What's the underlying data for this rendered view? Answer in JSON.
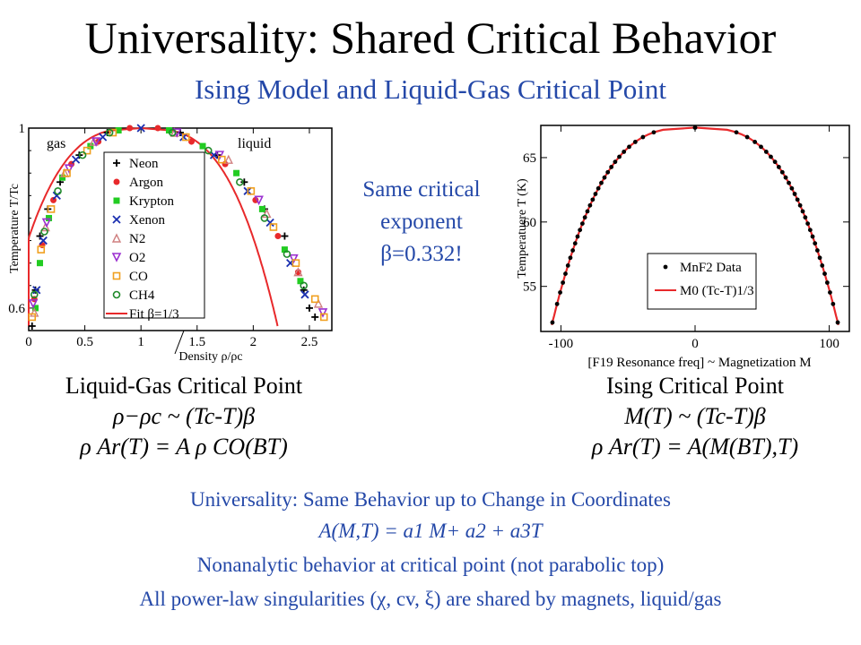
{
  "header": {
    "title": "Universality: Shared Critical Behavior",
    "subtitle": "Ising Model and Liquid-Gas Critical Point"
  },
  "note": {
    "line1": "Same critical",
    "line2": "exponent",
    "line3": "β=0.332!"
  },
  "captions": {
    "left_title": "Liquid-Gas Critical Point",
    "left_formula_1": "ρ−ρc ~ (Tc-T)β",
    "left_formula_2": "ρ Ar(T) = A ρ CO(BT)",
    "right_title": "Ising Critical Point",
    "right_formula_1": "M(T) ~ (Tc-T)β",
    "right_formula_2": "ρ Ar(T) = A(M(BT),T)"
  },
  "bottom": {
    "line1": "Universality: Same Behavior up to Change in Coordinates",
    "line2": "A(M,T) = a1 M+ a2 + a3T",
    "line3": "Nonanalytic behavior at critical point (not parabolic top)",
    "line4": "All power-law singularities (χ, cv, ξ) are shared by magnets, liquid/gas"
  },
  "chart_data": [
    {
      "type": "scatter",
      "xlabel": "Density ρ/ρc",
      "ylabel": "Temperature T/Tc",
      "xlim": [
        0,
        2.7
      ],
      "ylim": [
        0.55,
        1.0
      ],
      "xticks": [
        "0",
        "0.5",
        "1",
        "1.5",
        "2",
        "2.5"
      ],
      "yticks": [
        "1",
        "0.6"
      ],
      "annotations": [
        "gas",
        "liquid"
      ],
      "legend_position": "center-left",
      "series": [
        {
          "name": "Neon",
          "marker": "plus",
          "color": "#000000",
          "points": [
            [
              0.03,
              0.56
            ],
            [
              0.06,
              0.64
            ],
            [
              0.1,
              0.76
            ],
            [
              0.17,
              0.82
            ],
            [
              0.28,
              0.88
            ],
            [
              0.45,
              0.94
            ],
            [
              0.7,
              0.99
            ],
            [
              1.35,
              0.99
            ],
            [
              1.68,
              0.94
            ],
            [
              1.92,
              0.88
            ],
            [
              2.1,
              0.82
            ],
            [
              2.28,
              0.76
            ],
            [
              2.45,
              0.64
            ],
            [
              2.5,
              0.6
            ],
            [
              2.55,
              0.58
            ]
          ]
        },
        {
          "name": "Argon",
          "marker": "circle",
          "color": "#e8292b",
          "points": [
            [
              0.05,
              0.62
            ],
            [
              0.12,
              0.74
            ],
            [
              0.22,
              0.84
            ],
            [
              0.38,
              0.92
            ],
            [
              0.62,
              0.97
            ],
            [
              0.9,
              1.0
            ],
            [
              1.15,
              1.0
            ],
            [
              1.45,
              0.97
            ],
            [
              1.75,
              0.92
            ],
            [
              2.02,
              0.84
            ],
            [
              2.22,
              0.76
            ],
            [
              2.4,
              0.68
            ]
          ]
        },
        {
          "name": "Krypton",
          "marker": "square",
          "color": "#22cc22",
          "points": [
            [
              0.06,
              0.6
            ],
            [
              0.1,
              0.7
            ],
            [
              0.18,
              0.8
            ],
            [
              0.3,
              0.89
            ],
            [
              0.55,
              0.96
            ],
            [
              0.8,
              0.995
            ],
            [
              1.25,
              0.995
            ],
            [
              1.55,
              0.96
            ],
            [
              1.85,
              0.9
            ],
            [
              2.08,
              0.82
            ],
            [
              2.28,
              0.73
            ],
            [
              2.42,
              0.66
            ]
          ]
        },
        {
          "name": "Xenon",
          "marker": "x",
          "color": "#1a2fb0",
          "points": [
            [
              0.07,
              0.64
            ],
            [
              0.13,
              0.75
            ],
            [
              0.25,
              0.85
            ],
            [
              0.42,
              0.93
            ],
            [
              0.66,
              0.98
            ],
            [
              1.0,
              1.0
            ],
            [
              1.38,
              0.98
            ],
            [
              1.65,
              0.94
            ],
            [
              1.95,
              0.86
            ],
            [
              2.15,
              0.79
            ],
            [
              2.33,
              0.7
            ],
            [
              2.46,
              0.63
            ]
          ]
        },
        {
          "name": "N2",
          "marker": "triangle-up",
          "color": "#d08080",
          "points": [
            [
              0.05,
              0.59
            ],
            [
              0.15,
              0.78
            ],
            [
              0.32,
              0.9
            ],
            [
              0.58,
              0.97
            ],
            [
              1.3,
              0.99
            ],
            [
              1.78,
              0.93
            ],
            [
              2.12,
              0.81
            ],
            [
              2.4,
              0.68
            ],
            [
              2.58,
              0.61
            ]
          ]
        },
        {
          "name": "O2",
          "marker": "triangle-down",
          "color": "#9b30d0",
          "points": [
            [
              0.04,
              0.61
            ],
            [
              0.16,
              0.79
            ],
            [
              0.36,
              0.91
            ],
            [
              0.6,
              0.97
            ],
            [
              1.32,
              0.99
            ],
            [
              1.7,
              0.94
            ],
            [
              2.05,
              0.84
            ],
            [
              2.36,
              0.71
            ],
            [
              2.62,
              0.59
            ]
          ]
        },
        {
          "name": "CO",
          "marker": "square-open",
          "color": "#f0a020",
          "points": [
            [
              0.03,
              0.58
            ],
            [
              0.11,
              0.73
            ],
            [
              0.2,
              0.82
            ],
            [
              0.34,
              0.9
            ],
            [
              0.52,
              0.95
            ],
            [
              0.75,
              0.99
            ],
            [
              1.4,
              0.98
            ],
            [
              1.72,
              0.93
            ],
            [
              1.98,
              0.86
            ],
            [
              2.18,
              0.78
            ],
            [
              2.38,
              0.7
            ],
            [
              2.55,
              0.62
            ],
            [
              2.63,
              0.58
            ]
          ]
        },
        {
          "name": "CH4",
          "marker": "circle-open",
          "color": "#1f8a2a",
          "points": [
            [
              0.05,
              0.63
            ],
            [
              0.14,
              0.77
            ],
            [
              0.26,
              0.86
            ],
            [
              0.48,
              0.94
            ],
            [
              0.72,
              0.99
            ],
            [
              1.28,
              0.99
            ],
            [
              1.6,
              0.95
            ],
            [
              1.88,
              0.88
            ],
            [
              2.1,
              0.8
            ],
            [
              2.3,
              0.72
            ],
            [
              2.45,
              0.65
            ]
          ]
        },
        {
          "name": "Fit β=1/3",
          "marker": "line",
          "color": "#e8292b",
          "curve": {
            "center": 1.0,
            "A": 1.6,
            "beta": 0.3333,
            "tmin": 0.56
          }
        }
      ]
    },
    {
      "type": "scatter",
      "xlabel": "[F19 Resonance freq] ~ Magnetization M",
      "ylabel": "Temperatuere T (K)",
      "xlim": [
        -115,
        115
      ],
      "ylim": [
        51.5,
        67.5
      ],
      "xticks": [
        "-100",
        "0",
        "100"
      ],
      "yticks": [
        "55",
        "60",
        "65"
      ],
      "legend_position": "bottom-center",
      "series": [
        {
          "name": "MnF2 Data",
          "marker": "dot",
          "color": "#000000",
          "curve_sampled": {
            "Tc": 67.33,
            "T_min": 52.2,
            "points": 30
          }
        },
        {
          "name": "M0 (Tc-T)1/3",
          "marker": "line",
          "color": "#e8292b",
          "curve": {
            "Tc": 67.33,
            "M0": 43.0,
            "beta": 0.3333,
            "tmin": 52.0
          }
        }
      ]
    }
  ]
}
